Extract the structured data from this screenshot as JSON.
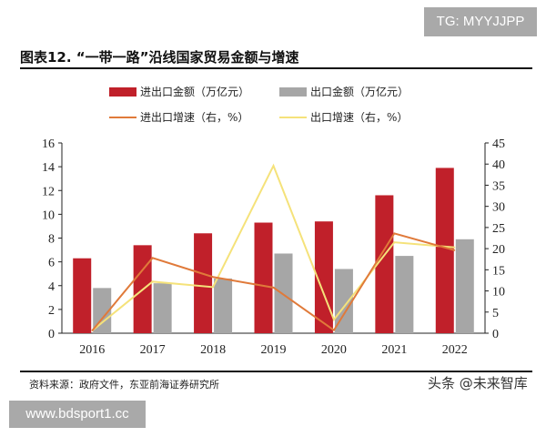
{
  "watermark_top": "TG: MYYJJPP",
  "watermark_bottom": "www.bdsport1.cc",
  "watermark_platform": "头条 @未来智库",
  "title": "图表12. “一带一路”沿线国家贸易金额与增速",
  "source": "资料来源：政府文件，东亚前海证券研究所",
  "chart_data": {
    "type": "bar+line",
    "categories": [
      "2016",
      "2017",
      "2018",
      "2019",
      "2020",
      "2021",
      "2022"
    ],
    "left_axis": {
      "ylim": [
        0,
        16
      ],
      "ticks": [
        0,
        2,
        4,
        6,
        8,
        10,
        12,
        14,
        16
      ]
    },
    "right_axis": {
      "ylim": [
        0,
        45
      ],
      "ticks": [
        0,
        5,
        10,
        15,
        20,
        25,
        30,
        35,
        40,
        45
      ]
    },
    "grid": false,
    "legend_position": "top",
    "series": [
      {
        "name": "进出口金额（万亿元）",
        "kind": "bar",
        "axis": "left",
        "color": "#c0202a",
        "values": [
          6.3,
          7.4,
          8.4,
          9.3,
          9.4,
          11.6,
          13.9
        ]
      },
      {
        "name": "出口金额（万亿元）",
        "kind": "bar",
        "axis": "left",
        "color": "#a6a6a6",
        "values": [
          3.8,
          4.2,
          4.6,
          6.7,
          5.4,
          6.5,
          7.9
        ]
      },
      {
        "name": "进出口增速（右，%）",
        "kind": "line",
        "axis": "right",
        "color": "#e07a3a",
        "values": [
          0.6,
          17.8,
          13.3,
          10.8,
          0.7,
          23.6,
          19.6
        ]
      },
      {
        "name": "出口增速（右，%）",
        "kind": "line",
        "axis": "right",
        "color": "#f5e27a",
        "values": [
          0.6,
          12.2,
          10.9,
          39.6,
          3.2,
          21.5,
          20.3
        ]
      }
    ]
  }
}
